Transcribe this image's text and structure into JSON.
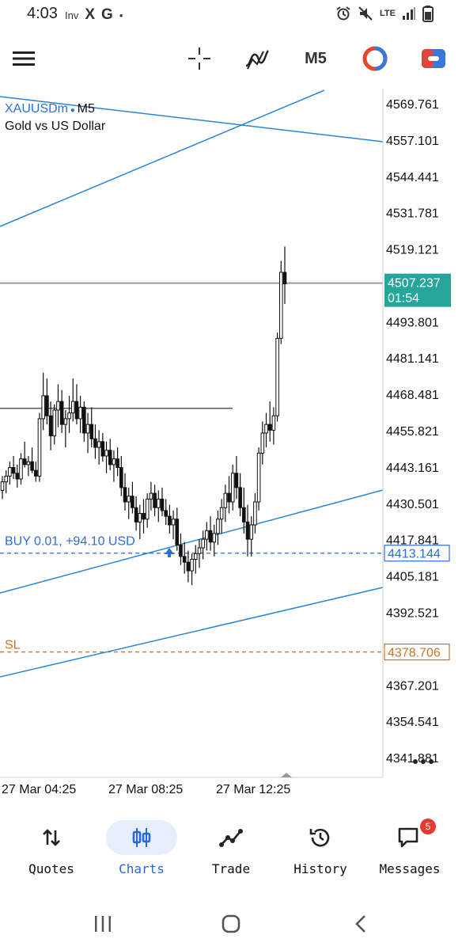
{
  "status_bar": {
    "time": "4:03",
    "left_icons": [
      "Inv",
      "X",
      "G",
      "•"
    ],
    "right_icons": [
      "alarm-icon",
      "mute-icon",
      "LTE",
      "signal-icon",
      "battery-icon"
    ],
    "network_label": "LTE"
  },
  "toolbar": {
    "menu_icon": "hamburger-icon",
    "crosshair_icon": "crosshair-icon",
    "indicators_icon": "indicators-icon",
    "timeframe": "M5",
    "icon_colors": {
      "toggle_red": "#e8452c",
      "toggle_blue": "#3a78d6",
      "accent_red": "#e0453a"
    }
  },
  "chart_header": {
    "symbol": "XAUUSDm",
    "timeframe": "M5",
    "description": "Gold vs US Dollar"
  },
  "chart_data": {
    "type": "candlestick",
    "symbol": "XAUUSDm",
    "timeframe": "M5",
    "ylim": [
      4335,
      4575
    ],
    "price_axis_ticks": [
      "4569.761",
      "4557.101",
      "4544.441",
      "4531.781",
      "4519.121",
      "4493.801",
      "4481.141",
      "4468.481",
      "4455.821",
      "4443.161",
      "4430.501",
      "4417.841",
      "4405.181",
      "4392.521",
      "4367.201",
      "4354.541",
      "4341.881"
    ],
    "time_axis_ticks": [
      "27 Mar 04:25",
      "27 Mar 08:25",
      "27 Mar 12:25"
    ],
    "current_price": {
      "value": 4507.237,
      "label": "4507.237",
      "countdown": "01:54",
      "color": "#26a69a"
    },
    "position": {
      "label": "BUY 0.01,  +94.10 USD",
      "price": 4413.144,
      "price_label": "4413.144",
      "color": "#2a6fd6"
    },
    "stop_loss": {
      "label": "SL",
      "price": 4378.706,
      "price_label": "4378.706",
      "color": "#c8752b"
    },
    "horizontal_line": {
      "price": 4463.6,
      "color": "#222222"
    },
    "trendline_color": "#2a86d4",
    "candles": [
      [
        4435,
        4440,
        4432,
        4438
      ],
      [
        4438,
        4442,
        4434,
        4440
      ],
      [
        4440,
        4445,
        4437,
        4443
      ],
      [
        4443,
        4447,
        4439,
        4441
      ],
      [
        4441,
        4444,
        4436,
        4439
      ],
      [
        4439,
        4448,
        4437,
        4446
      ],
      [
        4446,
        4452,
        4443,
        4444
      ],
      [
        4444,
        4447,
        4440,
        4445
      ],
      [
        4445,
        4450,
        4441,
        4442
      ],
      [
        4442,
        4445,
        4438,
        4440
      ],
      [
        4440,
        4462,
        4438,
        4460
      ],
      [
        4460,
        4476,
        4456,
        4468
      ],
      [
        4468,
        4474,
        4458,
        4461
      ],
      [
        4461,
        4466,
        4449,
        4454
      ],
      [
        4454,
        4465,
        4451,
        4463
      ],
      [
        4463,
        4472,
        4457,
        4466
      ],
      [
        4466,
        4470,
        4455,
        4458
      ],
      [
        4458,
        4463,
        4450,
        4460
      ],
      [
        4460,
        4468,
        4455,
        4462
      ],
      [
        4462,
        4474,
        4459,
        4466
      ],
      [
        4466,
        4472,
        4458,
        4460
      ],
      [
        4460,
        4468,
        4455,
        4464
      ],
      [
        4464,
        4466,
        4452,
        4455
      ],
      [
        4455,
        4462,
        4448,
        4458
      ],
      [
        4458,
        4464,
        4450,
        4453
      ],
      [
        4453,
        4458,
        4446,
        4450
      ],
      [
        4450,
        4456,
        4444,
        4452
      ],
      [
        4452,
        4455,
        4445,
        4447
      ],
      [
        4447,
        4452,
        4441,
        4449
      ],
      [
        4449,
        4453,
        4442,
        4444
      ],
      [
        4444,
        4449,
        4438,
        4446
      ],
      [
        4446,
        4450,
        4440,
        4443
      ],
      [
        4443,
        4447,
        4433,
        4436
      ],
      [
        4436,
        4441,
        4428,
        4431
      ],
      [
        4431,
        4436,
        4425,
        4433
      ],
      [
        4433,
        4438,
        4427,
        4429
      ],
      [
        4429,
        4433,
        4421,
        4424
      ],
      [
        4424,
        4430,
        4418,
        4427
      ],
      [
        4427,
        4432,
        4420,
        4425
      ],
      [
        4425,
        4434,
        4422,
        4432
      ],
      [
        4432,
        4438,
        4428,
        4434
      ],
      [
        4434,
        4437,
        4426,
        4429
      ],
      [
        4429,
        4435,
        4424,
        4432
      ],
      [
        4432,
        4436,
        4426,
        4428
      ],
      [
        4428,
        4432,
        4423,
        4426
      ],
      [
        4426,
        4430,
        4420,
        4423
      ],
      [
        4423,
        4428,
        4418,
        4425
      ],
      [
        4425,
        4429,
        4414,
        4416
      ],
      [
        4416,
        4420,
        4409,
        4412
      ],
      [
        4412,
        4417,
        4406,
        4410
      ],
      [
        4410,
        4414,
        4403,
        4407
      ],
      [
        4407,
        4413,
        4402,
        4411
      ],
      [
        4411,
        4416,
        4406,
        4413
      ],
      [
        4413,
        4418,
        4408,
        4415
      ],
      [
        4415,
        4421,
        4411,
        4418
      ],
      [
        4418,
        4424,
        4414,
        4421
      ],
      [
        4421,
        4426,
        4414,
        4417
      ],
      [
        4417,
        4423,
        4412,
        4420
      ],
      [
        4420,
        4428,
        4416,
        4425
      ],
      [
        4425,
        4432,
        4420,
        4429
      ],
      [
        4429,
        4437,
        4424,
        4434
      ],
      [
        4434,
        4440,
        4427,
        4431
      ],
      [
        4431,
        4444,
        4428,
        4441
      ],
      [
        4441,
        4447,
        4432,
        4436
      ],
      [
        4436,
        4441,
        4426,
        4429
      ],
      [
        4429,
        4436,
        4420,
        4424
      ],
      [
        4424,
        4430,
        4412,
        4418
      ],
      [
        4418,
        4426,
        4412,
        4423
      ],
      [
        4423,
        4434,
        4420,
        4431
      ],
      [
        4431,
        4450,
        4428,
        4448
      ],
      [
        4448,
        4459,
        4444,
        4455
      ],
      [
        4455,
        4462,
        4450,
        4458
      ],
      [
        4458,
        4466,
        4452,
        4456
      ],
      [
        4456,
        4464,
        4451,
        4461
      ],
      [
        4461,
        4490,
        4459,
        4488
      ],
      [
        4488,
        4515,
        4486,
        4511
      ],
      [
        4511,
        4520,
        4500,
        4507
      ]
    ]
  },
  "bottom_nav": {
    "items": [
      {
        "label": "Quotes",
        "icon": "sort-arrows-icon",
        "active": false
      },
      {
        "label": "Charts",
        "icon": "candles-icon",
        "active": true
      },
      {
        "label": "Trade",
        "icon": "trend-line-icon",
        "active": false
      },
      {
        "label": "History",
        "icon": "history-clock-icon",
        "active": false
      },
      {
        "label": "Messages",
        "icon": "chat-bubble-icon",
        "active": false,
        "badge": "5"
      }
    ]
  },
  "system_nav": {
    "recents_icon": "recents-icon",
    "home_icon": "home-icon",
    "back_icon": "back-chevron-icon"
  }
}
